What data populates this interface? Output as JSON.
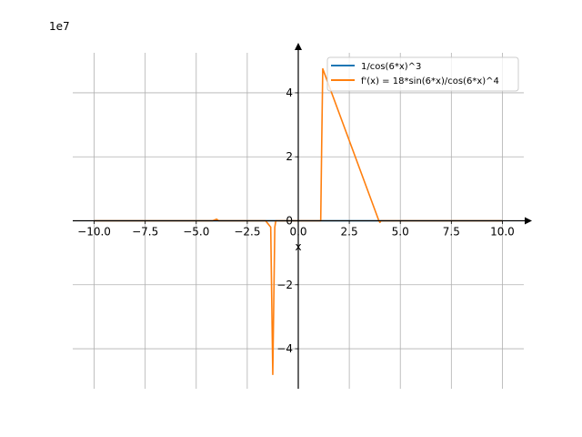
{
  "chart_data": {
    "type": "line",
    "title": "",
    "xlabel": "x",
    "ylabel": "",
    "y_multiplier_label": "1e7",
    "xlim": [
      -11.05,
      11.05
    ],
    "ylim": [
      -5.25,
      5.25
    ],
    "x_ticks": [
      -10,
      -7.5,
      -5,
      -2.5,
      0,
      2.5,
      5,
      7.5,
      10
    ],
    "x_tick_labels": [
      "−10.0",
      "−7.5",
      "−5.0",
      "−2.5",
      "0.0",
      "2.5",
      "5.0",
      "7.5",
      "10.0"
    ],
    "y_ticks": [
      -4,
      -2,
      0,
      2,
      4
    ],
    "y_tick_labels": [
      "−4",
      "−2",
      "0",
      "2",
      "4"
    ],
    "grid": true,
    "legend_position": "top-right",
    "series": [
      {
        "name": "1/cos(6*x)^3",
        "color": "#1f77b4",
        "x": [
          -10,
          -5,
          0,
          5,
          10
        ],
        "y": [
          0,
          0,
          0,
          0,
          0
        ]
      },
      {
        "name": "f'(x) = 18*sin(6*x)/cos(6*x)^4",
        "color": "#ff7f0e",
        "x": [
          -10.0,
          -4.2,
          -4.0,
          -3.9,
          -1.6,
          -1.35,
          -1.3,
          -1.25,
          -1.2,
          -1.15,
          -1.1,
          -1.0,
          1.1,
          1.15,
          1.2,
          3.95,
          4.0,
          4.05,
          10.0
        ],
        "y": [
          0,
          0,
          0.05,
          0,
          0,
          -0.2,
          -2.5,
          -4.8,
          -2.5,
          -0.2,
          0,
          0,
          0,
          2.5,
          4.75,
          0,
          -0.05,
          0,
          0
        ]
      }
    ]
  }
}
